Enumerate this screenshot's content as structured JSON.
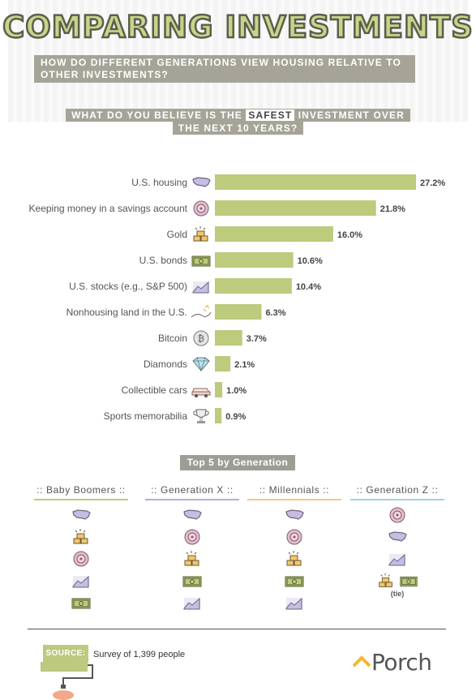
{
  "header": {
    "title": "COMPARING INVESTMENTS",
    "subtitle": "HOW DO DIFFERENT GENERATIONS VIEW HOUSING RELATIVE TO OTHER INVESTMENTS?"
  },
  "question": {
    "prefix": "WHAT DO YOU BELIEVE IS THE ",
    "highlight": "SAFEST",
    "suffix": " INVESTMENT OVER",
    "line2": "THE NEXT 10 YEARS?"
  },
  "colors": {
    "bar": "#bccb7c",
    "title_fill": "#c9d48a",
    "label_box": "#a5a497",
    "boomers_line": "#bccb7c",
    "genx_line": "#b8aed4",
    "millennials_line": "#f0c98a",
    "genz_line": "#9fd3dc",
    "icon_purple": "#c6bde0",
    "icon_pink": "#e7bcd0",
    "icon_green": "#bccb7c",
    "icon_gold": "#f1c670"
  },
  "chart_data": {
    "type": "bar",
    "orientation": "horizontal",
    "categories": [
      "U.S. housing",
      "Keeping money in a savings account",
      "Gold",
      "U.S. bonds",
      "U.S. stocks (e.g., S&P 500)",
      "Nonhousing land in the U.S.",
      "Bitcoin",
      "Diamonds",
      "Collectible cars",
      "Sports memorabilia"
    ],
    "values": [
      27.2,
      21.8,
      16.0,
      10.6,
      10.4,
      6.3,
      3.7,
      2.1,
      1.0,
      0.9
    ],
    "value_labels": [
      "27.2%",
      "21.8%",
      "16.0%",
      "10.6%",
      "10.4%",
      "6.3%",
      "3.7%",
      "2.1%",
      "1.0%",
      "0.9%"
    ],
    "icons": [
      "usa-map-icon",
      "piggy-bank-icon",
      "gold-bars-icon",
      "bond-bills-icon",
      "stock-chart-icon",
      "land-icon",
      "bitcoin-icon",
      "diamond-icon",
      "car-icon",
      "trophy-icon"
    ],
    "xlim": [
      0,
      27.2
    ]
  },
  "generations": {
    "title": "Top 5 by Generation",
    "columns": [
      {
        "name": ":: Baby Boomers ::",
        "ranking": [
          "usa-map-icon",
          "gold-bars-icon",
          "piggy-bank-icon",
          "stock-chart-icon",
          "bond-bills-icon"
        ]
      },
      {
        "name": ":: Generation X ::",
        "ranking": [
          "usa-map-icon",
          "piggy-bank-icon",
          "gold-bars-icon",
          "bond-bills-icon",
          "stock-chart-icon"
        ]
      },
      {
        "name": ":: Millennials ::",
        "ranking": [
          "usa-map-icon",
          "piggy-bank-icon",
          "gold-bars-icon",
          "bond-bills-icon",
          "stock-chart-icon"
        ]
      },
      {
        "name": ":: Generation Z ::",
        "ranking": [
          "piggy-bank-icon",
          "usa-map-icon",
          "stock-chart-icon",
          "gold-bars-icon",
          "bond-bills-icon"
        ],
        "tie_note": "(tie)"
      }
    ]
  },
  "footer": {
    "source_label": "SOURCE:",
    "source_text": "Survey of 1,399 people",
    "brand": "Porch"
  }
}
